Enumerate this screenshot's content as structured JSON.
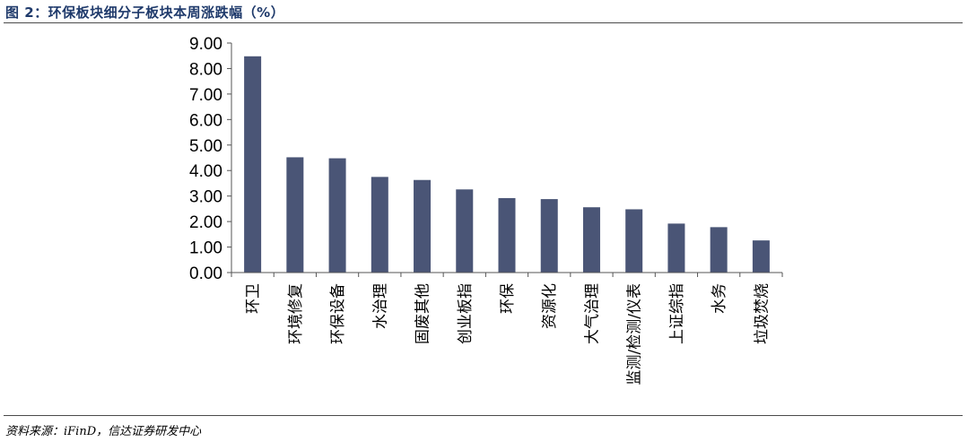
{
  "figure": {
    "title": "图 2：环保板块细分子板块本周涨跌幅（%）",
    "source": "资料来源：iFinD，信达证券研发中心"
  },
  "chart_data": {
    "type": "bar",
    "title": "环保板块细分子板块本周涨跌幅（%）",
    "xlabel": "",
    "ylabel": "",
    "categories": [
      "环卫",
      "环境修复",
      "环保设备",
      "水治理",
      "固废其他",
      "创业板指",
      "环保",
      "资源化",
      "大气治理",
      "监测/检测/仪表",
      "上证综指",
      "水务",
      "垃圾焚烧"
    ],
    "values": [
      8.48,
      4.52,
      4.48,
      3.75,
      3.63,
      3.26,
      2.92,
      2.88,
      2.56,
      2.48,
      1.92,
      1.78,
      1.26
    ],
    "ylim": [
      0,
      9
    ],
    "yticks": [
      "0.00",
      "1.00",
      "2.00",
      "3.00",
      "4.00",
      "5.00",
      "6.00",
      "7.00",
      "8.00",
      "9.00"
    ],
    "grid": false,
    "legend": "none",
    "bar_color": "#4a5576",
    "axis_color": "#555555"
  }
}
